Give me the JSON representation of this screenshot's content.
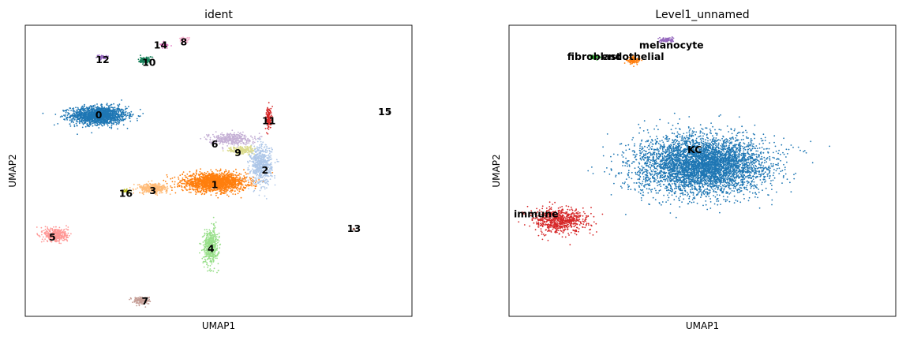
{
  "chart_data": [
    {
      "type": "scatter",
      "title": "ident",
      "xlabel": "UMAP1",
      "ylabel": "UMAP2",
      "grid": false,
      "ticks": false,
      "cluster_labels": [
        {
          "label": "0",
          "x": 1.9,
          "y": 6.9
        },
        {
          "label": "1",
          "x": 4.9,
          "y": 4.5
        },
        {
          "label": "2",
          "x": 6.2,
          "y": 5.0
        },
        {
          "label": "3",
          "x": 3.3,
          "y": 4.3
        },
        {
          "label": "4",
          "x": 4.8,
          "y": 2.3
        },
        {
          "label": "5",
          "x": 0.7,
          "y": 2.7
        },
        {
          "label": "6",
          "x": 4.9,
          "y": 5.9
        },
        {
          "label": "7",
          "x": 3.1,
          "y": 0.5
        },
        {
          "label": "8",
          "x": 4.1,
          "y": 9.4
        },
        {
          "label": "9",
          "x": 5.5,
          "y": 5.6
        },
        {
          "label": "10",
          "x": 3.2,
          "y": 8.7
        },
        {
          "label": "11",
          "x": 6.3,
          "y": 6.7
        },
        {
          "label": "12",
          "x": 2.0,
          "y": 8.8
        },
        {
          "label": "13",
          "x": 8.5,
          "y": 3.0
        },
        {
          "label": "14",
          "x": 3.5,
          "y": 9.3
        },
        {
          "label": "15",
          "x": 9.3,
          "y": 7.0
        },
        {
          "label": "16",
          "x": 2.6,
          "y": 4.2
        }
      ],
      "clusters": [
        {
          "label": "0",
          "color": "#1f77b4",
          "x": 1.9,
          "y": 6.9,
          "sx": 0.65,
          "sy": 0.28,
          "n": 1600
        },
        {
          "label": "1",
          "color": "#ff7f0e",
          "x": 4.9,
          "y": 4.6,
          "sx": 0.75,
          "sy": 0.28,
          "n": 1700
        },
        {
          "label": "2",
          "color": "#aec7e8",
          "x": 6.1,
          "y": 5.2,
          "sx": 0.25,
          "sy": 0.6,
          "n": 650
        },
        {
          "label": "3",
          "color": "#ffbb78",
          "x": 3.3,
          "y": 4.4,
          "sx": 0.35,
          "sy": 0.15,
          "n": 320
        },
        {
          "label": "4",
          "color": "#98df8a",
          "x": 4.8,
          "y": 2.4,
          "sx": 0.18,
          "sy": 0.55,
          "n": 450
        },
        {
          "label": "5",
          "color": "#ff9896",
          "x": 0.8,
          "y": 2.8,
          "sx": 0.28,
          "sy": 0.22,
          "n": 380
        },
        {
          "label": "6",
          "color": "#c5b0d5",
          "x": 5.3,
          "y": 6.1,
          "sx": 0.5,
          "sy": 0.18,
          "n": 350
        },
        {
          "label": "7",
          "color": "#c49c94",
          "x": 3.0,
          "y": 0.55,
          "sx": 0.2,
          "sy": 0.12,
          "n": 140
        },
        {
          "label": "8",
          "color": "#f7b6d2",
          "x": 4.1,
          "y": 9.5,
          "sx": 0.12,
          "sy": 0.08,
          "n": 70
        },
        {
          "label": "9",
          "color": "#dbdb8d",
          "x": 5.6,
          "y": 5.7,
          "sx": 0.3,
          "sy": 0.12,
          "n": 200
        },
        {
          "label": "10",
          "color": "#17805a",
          "x": 3.1,
          "y": 8.8,
          "sx": 0.15,
          "sy": 0.12,
          "n": 110
        },
        {
          "label": "11",
          "color": "#d62728",
          "x": 6.3,
          "y": 6.8,
          "sx": 0.07,
          "sy": 0.35,
          "n": 130
        },
        {
          "label": "12",
          "color": "#9467bd",
          "x": 2.0,
          "y": 8.9,
          "sx": 0.1,
          "sy": 0.06,
          "n": 50
        },
        {
          "label": "13",
          "color": "#8c564b",
          "x": 8.5,
          "y": 3.0,
          "sx": 0.03,
          "sy": 0.03,
          "n": 8
        },
        {
          "label": "14",
          "color": "#e377c2",
          "x": 3.6,
          "y": 9.3,
          "sx": 0.1,
          "sy": 0.07,
          "n": 50
        },
        {
          "label": "15",
          "color": "#7f7f7f",
          "x": 9.4,
          "y": 7.0,
          "sx": 0.02,
          "sy": 0.02,
          "n": 3
        },
        {
          "label": "16",
          "color": "#bcbd22",
          "x": 2.6,
          "y": 4.3,
          "sx": 0.08,
          "sy": 0.05,
          "n": 30
        }
      ],
      "xlim": [
        0,
        10
      ],
      "ylim": [
        0,
        10
      ]
    },
    {
      "type": "scatter",
      "title": "Level1_unnamed",
      "xlabel": "UMAP1",
      "ylabel": "UMAP2",
      "grid": false,
      "ticks": false,
      "cluster_labels": [
        {
          "label": "KC",
          "x": 4.8,
          "y": 5.7
        },
        {
          "label": "immune",
          "x": 0.7,
          "y": 3.5
        },
        {
          "label": "fibroblast",
          "x": 2.2,
          "y": 8.9
        },
        {
          "label": "endothelial",
          "x": 3.2,
          "y": 8.9
        },
        {
          "label": "melanocyte",
          "x": 4.2,
          "y": 9.3
        }
      ],
      "clusters": [
        {
          "label": "KC",
          "color": "#1f77b4",
          "x": 5.0,
          "y": 5.2,
          "sx": 1.5,
          "sy": 0.9,
          "n": 4800
        },
        {
          "label": "immune",
          "color": "#d62728",
          "x": 1.3,
          "y": 3.3,
          "sx": 0.6,
          "sy": 0.4,
          "n": 700
        },
        {
          "label": "fibroblast",
          "color": "#2ca02c",
          "x": 2.2,
          "y": 8.9,
          "sx": 0.12,
          "sy": 0.06,
          "n": 60
        },
        {
          "label": "endothelial",
          "color": "#ff7f0e",
          "x": 3.2,
          "y": 8.8,
          "sx": 0.15,
          "sy": 0.12,
          "n": 110
        },
        {
          "label": "melanocyte",
          "color": "#9467bd",
          "x": 4.1,
          "y": 9.5,
          "sx": 0.15,
          "sy": 0.08,
          "n": 80
        }
      ],
      "xlim": [
        0,
        10
      ],
      "ylim": [
        0,
        10
      ]
    }
  ]
}
